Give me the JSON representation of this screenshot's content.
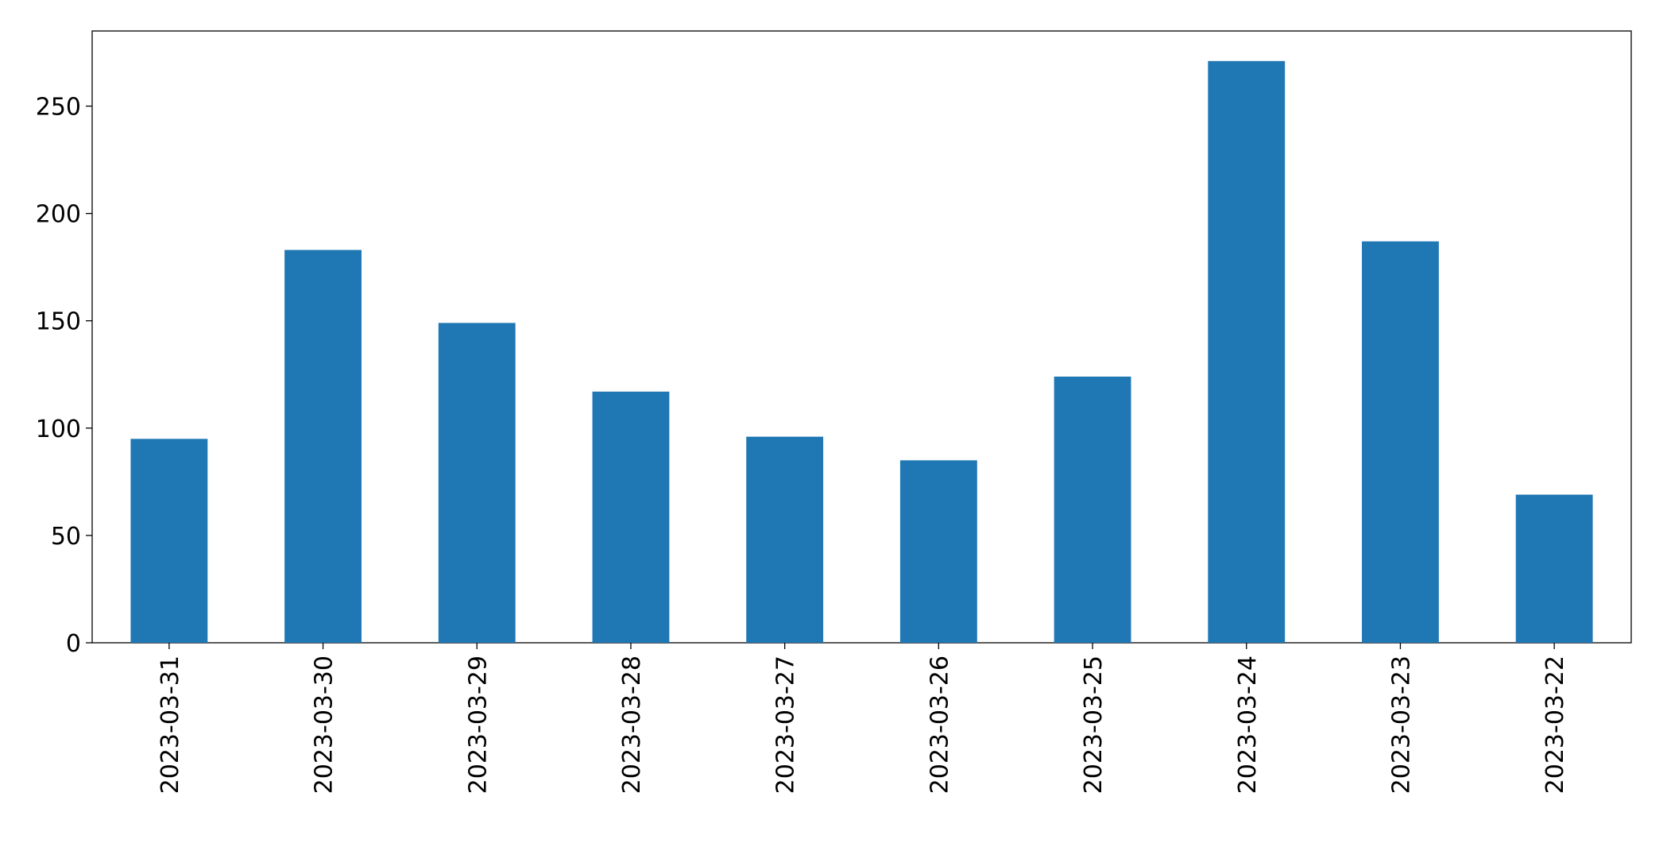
{
  "chart_data": {
    "type": "bar",
    "categories": [
      "2023-03-31",
      "2023-03-30",
      "2023-03-29",
      "2023-03-28",
      "2023-03-27",
      "2023-03-26",
      "2023-03-25",
      "2023-03-24",
      "2023-03-23",
      "2023-03-22"
    ],
    "values": [
      95,
      183,
      149,
      117,
      96,
      85,
      124,
      271,
      187,
      69
    ],
    "color": "#1f77b4",
    "ylim": [
      0,
      285
    ],
    "yticks": [
      0,
      50,
      100,
      150,
      200,
      250
    ],
    "grid": false
  }
}
